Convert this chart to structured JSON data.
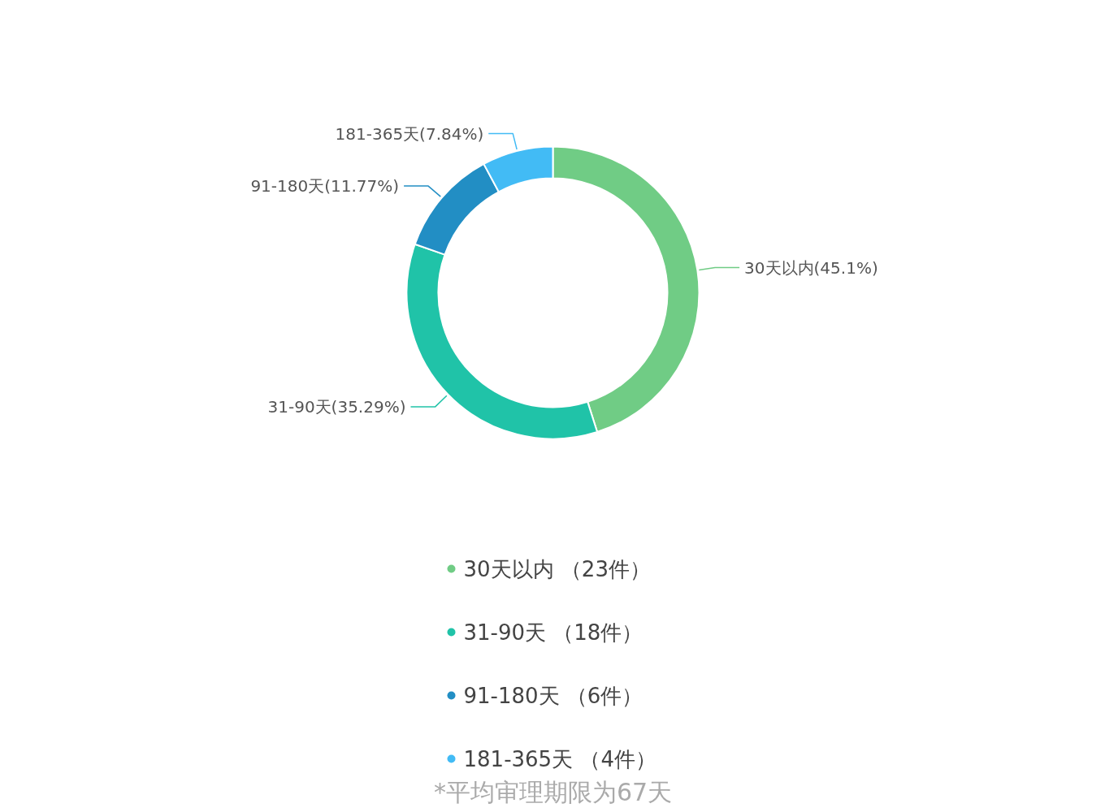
{
  "chart_data": {
    "type": "donut",
    "categories": [
      "30天以内 （23件）",
      "31-90天 （18件）",
      "91-180天 （6件）",
      "181-365天 （4件）"
    ],
    "values": [
      45.1,
      35.29,
      11.77,
      7.84
    ],
    "colors": [
      "#70cc85",
      "#20c3a8",
      "#228ec4",
      "#42bbf5"
    ],
    "value_labels": [
      "30天以内(45.1%)",
      "31-90天(35.29%)",
      "91-180天(11.77%)",
      "181-365天(7.84%)"
    ],
    "legend": "bottom",
    "annotations": [
      "*平均审理期限为67天"
    ]
  }
}
